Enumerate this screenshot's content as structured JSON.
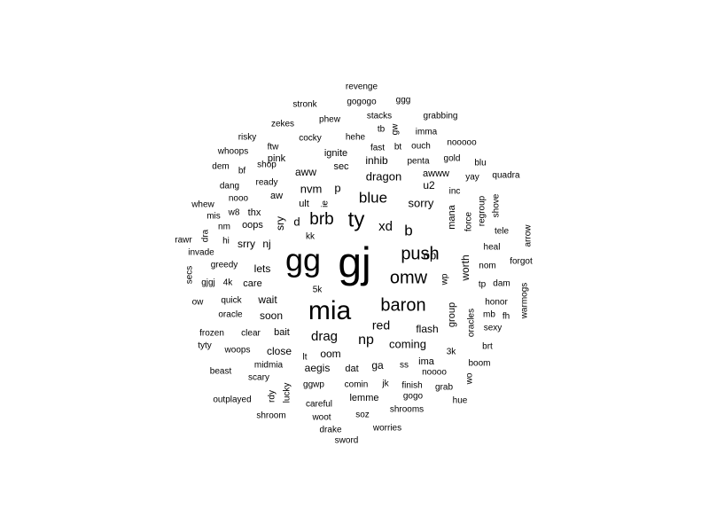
{
  "text_color": "#000000",
  "background_color": "#ffffff",
  "words": [
    "gj",
    "gg",
    "mia",
    "baron",
    "ty",
    "push",
    "omw",
    "brb",
    "blue",
    "drag",
    "xd",
    "b",
    "red",
    "np",
    "op",
    "sorry",
    "dragon",
    "nvm",
    "coming",
    "flash",
    "wait",
    "soon",
    "oom",
    "bait",
    "aegis",
    "lets",
    "close",
    "group",
    "worth",
    "care",
    "p",
    "u2",
    "d",
    "sec",
    "aww",
    "awww",
    "ga",
    "ult",
    "sry",
    "mana",
    "regroup",
    "force",
    "shove",
    "arrow",
    "heal",
    "forgot",
    "nom",
    "dam",
    "tp",
    "honor",
    "mb",
    "fh",
    "sexy",
    "brt",
    "boom",
    "hue",
    "grab",
    "wo",
    "3k",
    "ima",
    "noooo",
    "finish",
    "gogo",
    "shrooms",
    "jk",
    "comin",
    "lemme",
    "dat",
    "ss",
    "careful",
    "ggwp",
    "lucky",
    "rdy",
    "woot",
    "soz",
    "drake",
    "sword",
    "worries",
    "shroom",
    "outplayed",
    "beast",
    "scary",
    "midmia",
    "woops",
    "tyty",
    "frozen",
    "clear",
    "oracle",
    "quick",
    "ow",
    "secs",
    "gjgj",
    "4k",
    "greedy",
    "invade",
    "rawr",
    "dra",
    "hi",
    "srry",
    "nj",
    "oops",
    "thx",
    "nm",
    "mis",
    "w8",
    "whew",
    "dang",
    "nooo",
    "aw",
    "ready",
    "bf",
    "dem",
    "shop",
    "whoops",
    "ftw",
    "pink",
    "ignite",
    "cocky",
    "risky",
    "zekes",
    "phew",
    "hehe",
    "stronk",
    "revenge",
    "gogogo",
    "ggg",
    "stacks",
    "tb",
    "gw",
    "imma",
    "grabbing",
    "fast",
    "bt",
    "ouch",
    "nooooo",
    "penta",
    "gold",
    "blu",
    "inhib",
    "quadra",
    "yay",
    "inc",
    "tele",
    "oracles",
    "warmogs",
    "kk",
    "ie",
    "lt",
    "5k",
    "wp"
  ]
}
